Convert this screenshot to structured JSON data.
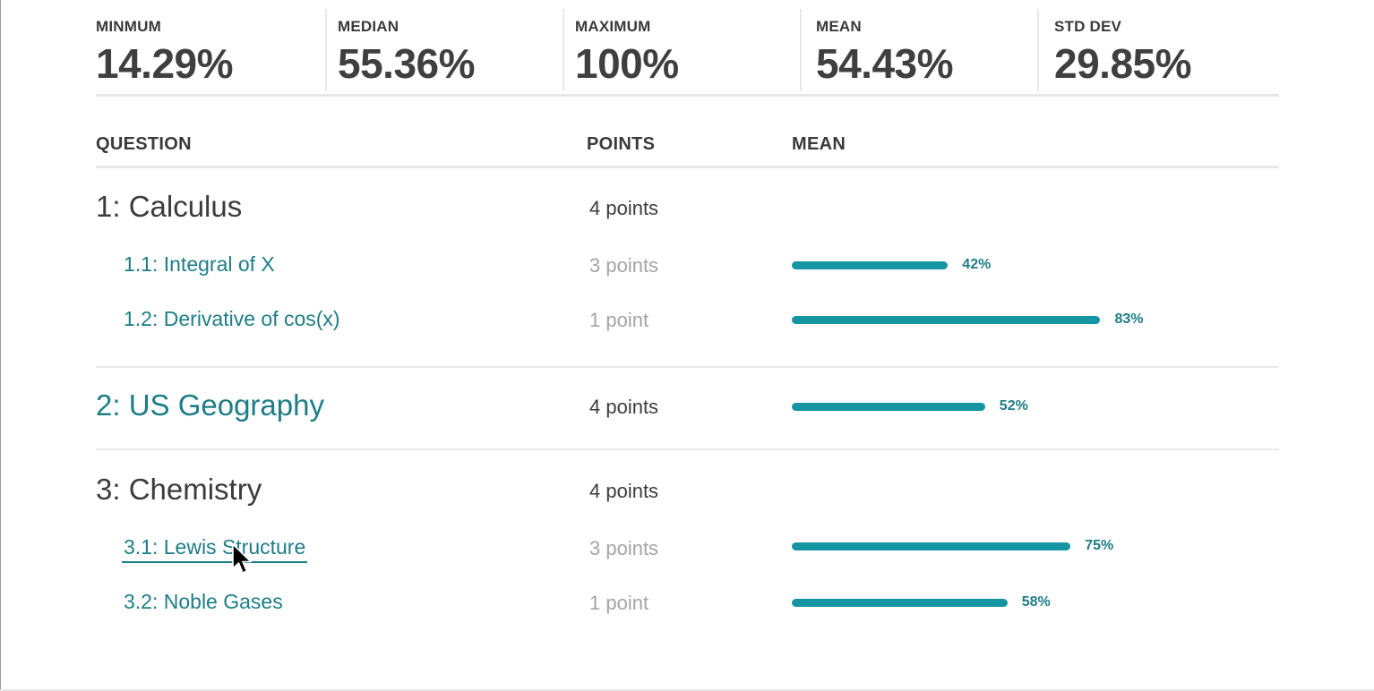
{
  "stats": [
    {
      "label": "MINMUM",
      "value": "14.29%"
    },
    {
      "label": "MEDIAN",
      "value": "55.36%"
    },
    {
      "label": "MAXIMUM",
      "value": "100%"
    },
    {
      "label": "MEAN",
      "value": "54.43%"
    },
    {
      "label": "STD DEV",
      "value": "29.85%"
    }
  ],
  "table": {
    "headers": {
      "question": "QUESTION",
      "points": "POINTS",
      "mean": "MEAN"
    },
    "groups": [
      {
        "title": "1: Calculus",
        "points": "4 points",
        "subs": [
          {
            "title": "1.1: Integral of X",
            "points": "3 points",
            "mean_pct": 42,
            "mean_label": "42%"
          },
          {
            "title": "1.2: Derivative of cos(x)",
            "points": "1 point",
            "mean_pct": 83,
            "mean_label": "83%"
          }
        ]
      },
      {
        "title": "2: US Geography",
        "points": "4 points",
        "mean_pct": 52,
        "mean_label": "52%"
      },
      {
        "title": "3: Chemistry",
        "points": "4 points",
        "subs": [
          {
            "title": "3.1: Lewis Structure",
            "points": "3 points",
            "mean_pct": 75,
            "mean_label": "75%"
          },
          {
            "title": "3.2: Noble Gases",
            "points": "1 point",
            "mean_pct": 58,
            "mean_label": "58%"
          }
        ]
      }
    ]
  },
  "colors": {
    "accent": "#1595a1",
    "link": "#1e7d86",
    "muted": "#a4a4a4"
  },
  "icons": {
    "cursor": "mouse-pointer-icon"
  }
}
